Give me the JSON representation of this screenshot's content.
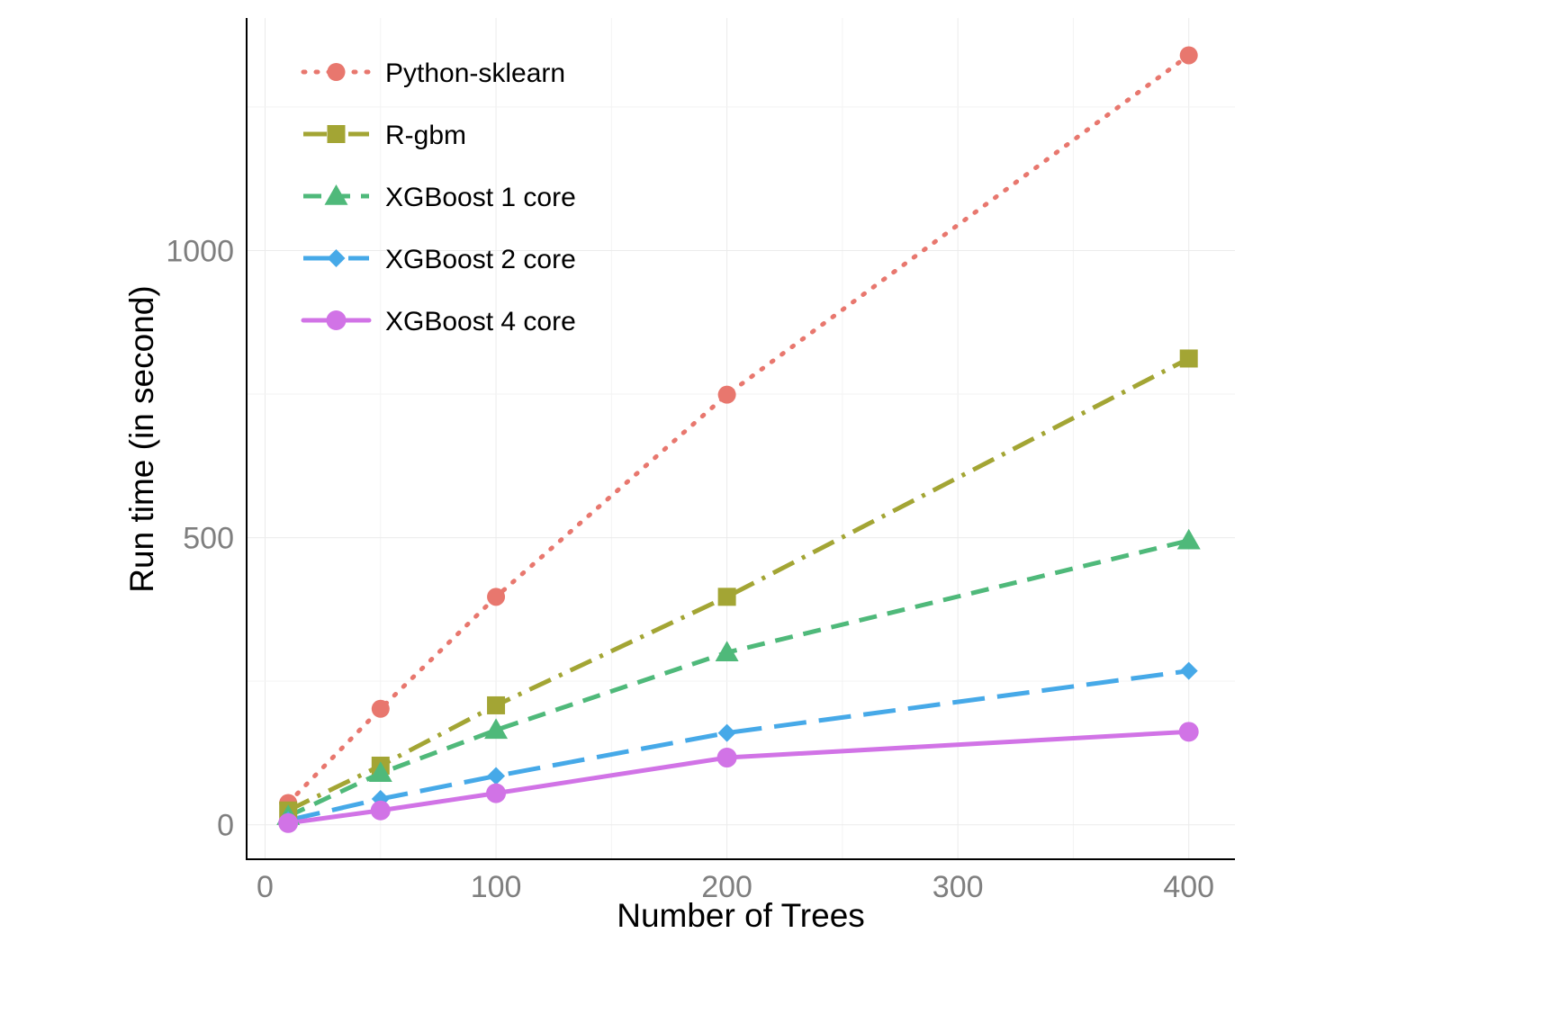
{
  "chart_data": {
    "type": "line",
    "xlabel": "Number of Trees",
    "ylabel": "Run time (in second)",
    "x": [
      10,
      50,
      100,
      200,
      400
    ],
    "xlim": [
      -8,
      420
    ],
    "ylim": [
      -60,
      1405
    ],
    "xticks": [
      0,
      100,
      200,
      300,
      400
    ],
    "yticks": [
      0,
      500,
      1000
    ],
    "x_tick_labels": [
      "0",
      "100",
      "200",
      "300",
      "400"
    ],
    "y_tick_labels": [
      "0",
      "500",
      "1000"
    ],
    "grid": true,
    "legend_position": "top-left",
    "series": [
      {
        "name": "Python-sklearn",
        "values": [
          38,
          202,
          397,
          749,
          1340
        ],
        "color": "#E8776E",
        "marker": "circle",
        "dash": "dotted"
      },
      {
        "name": "R-gbm",
        "values": [
          25,
          103,
          208,
          397,
          812
        ],
        "color": "#A3A534",
        "marker": "square",
        "dash": "dashdot"
      },
      {
        "name": "XGBoost 1 core",
        "values": [
          15,
          90,
          165,
          300,
          495
        ],
        "color": "#4FB97A",
        "marker": "triangle",
        "dash": "dashed"
      },
      {
        "name": "XGBoost 2 core",
        "values": [
          8,
          45,
          85,
          160,
          268
        ],
        "color": "#46A9E8",
        "marker": "diamond",
        "dash": "longdash"
      },
      {
        "name": "XGBoost 4 core",
        "values": [
          3,
          25,
          55,
          117,
          162
        ],
        "color": "#D173E6",
        "marker": "circle-large",
        "dash": "solid"
      }
    ]
  }
}
